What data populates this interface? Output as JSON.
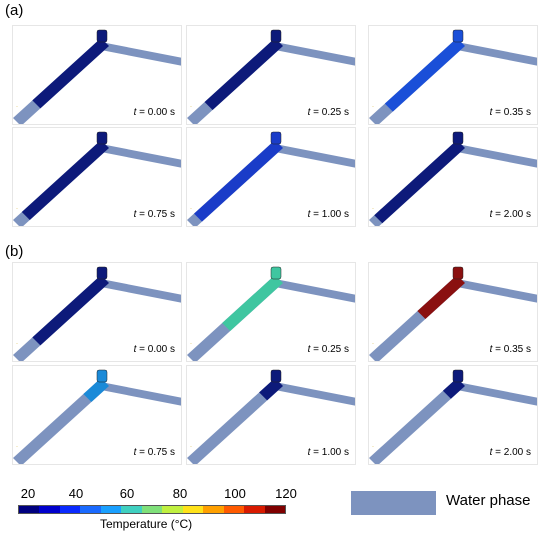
{
  "section_a": {
    "label": "(a)"
  },
  "section_b": {
    "label": "(b)"
  },
  "panels_a": [
    {
      "time_prefix": "t",
      "time_value": "= 0.00 s",
      "fill_color": "#0d1a7a",
      "water_level": 0.22
    },
    {
      "time_prefix": "t",
      "time_value": "= 0.25 s",
      "fill_color": "#0d1a7a",
      "water_level": 0.2
    },
    {
      "time_prefix": "t",
      "time_value": "= 0.35 s",
      "fill_color": "#1a4fd8",
      "water_level": 0.18
    },
    {
      "time_prefix": "t",
      "time_value": "= 0.75 s",
      "fill_color": "#0d1a7a",
      "water_level": 0.1
    },
    {
      "time_prefix": "t",
      "time_value": "= 1.00 s",
      "fill_color": "#1a3cc8",
      "water_level": 0.08
    },
    {
      "time_prefix": "t",
      "time_value": "= 2.00 s",
      "fill_color": "#0d1a7a",
      "water_level": 0.06
    }
  ],
  "panels_b": [
    {
      "time_prefix": "t",
      "time_value": "= 0.00 s",
      "fill_color": "#0d1a7a",
      "water_level": 0.22
    },
    {
      "time_prefix": "t",
      "time_value": "= 0.25 s",
      "fill_color": "#3fc6a0",
      "water_level": 0.4
    },
    {
      "time_prefix": "t",
      "time_value": "= 0.35 s",
      "fill_color": "#8a1010",
      "water_level": 0.55
    },
    {
      "time_prefix": "t",
      "time_value": "= 0.75 s",
      "fill_color": "#1a8ad8",
      "water_level": 0.8
    },
    {
      "time_prefix": "t",
      "time_value": "= 1.00 s",
      "fill_color": "#0d1a7a",
      "water_level": 0.82
    },
    {
      "time_prefix": "t",
      "time_value": "= 2.00 s",
      "fill_color": "#0d1a7a",
      "water_level": 0.84
    }
  ],
  "legend": {
    "ticks": [
      "20",
      "40",
      "60",
      "80",
      "100",
      "120"
    ],
    "title": "Temperature (°C)",
    "colors": [
      "#00007f",
      "#0000cc",
      "#0a2aff",
      "#1a6aff",
      "#1aa0ff",
      "#3fd0c0",
      "#7fe07a",
      "#c0f040",
      "#ffe21a",
      "#ffa000",
      "#ff5a00",
      "#d81a00",
      "#7f0000"
    ],
    "water_color": "#7d93bf",
    "water_label": "Water phase"
  }
}
